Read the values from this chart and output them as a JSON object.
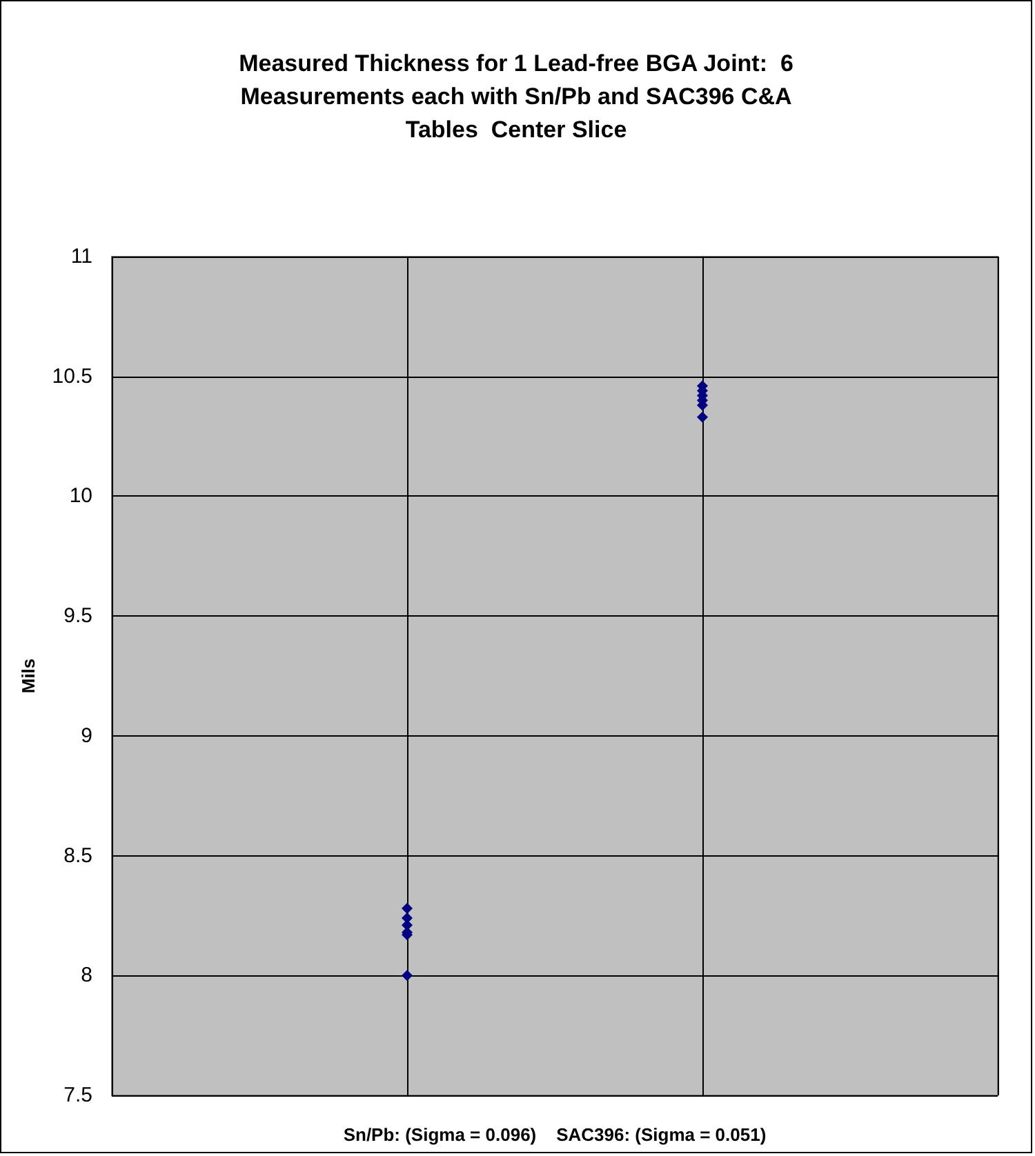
{
  "chart_data": {
    "type": "scatter",
    "title": "Measured Thickness for 1 Lead-free BGA Joint:  6\nMeasurements each with Sn/Pb and SAC396 C&A\nTables  Center Slice",
    "xlabel": "Sn/Pb: (Sigma = 0.096)    SAC396: (Sigma = 0.051)",
    "ylabel": "Mils",
    "categories": [
      null,
      null
    ],
    "series": [
      {
        "color": "#000080",
        "values": [
          8.28,
          10.46
        ]
      },
      {
        "color": "#000080",
        "values": [
          8.24,
          10.44
        ]
      },
      {
        "color": "#000080",
        "values": [
          8.21,
          10.42
        ]
      },
      {
        "color": "#000080",
        "values": [
          8.18,
          10.4
        ]
      },
      {
        "color": "#000080",
        "values": [
          8.17,
          10.38
        ]
      },
      {
        "color": "#000080",
        "values": [
          8.0,
          10.33
        ]
      }
    ],
    "ylim": [
      7.5,
      11
    ],
    "yticks": [
      7.5,
      8,
      8.5,
      9,
      9.5,
      10,
      10.5,
      11
    ],
    "grid": true,
    "marker": "diamond",
    "tick_labels": "y"
  }
}
